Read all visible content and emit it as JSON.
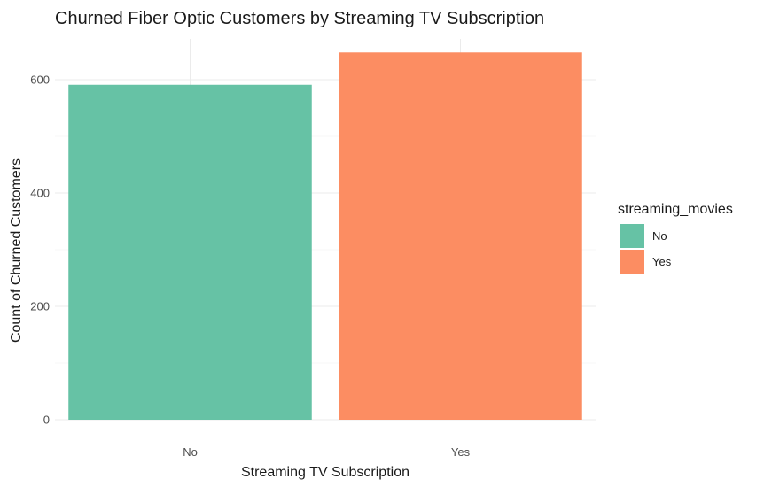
{
  "chart_data": {
    "type": "bar",
    "title": "Churned Fiber Optic Customers by Streaming TV Subscription",
    "xlabel": "Streaming TV Subscription",
    "ylabel": "Count of Churned Customers",
    "categories": [
      "No",
      "Yes"
    ],
    "values": [
      591,
      648
    ],
    "colors": [
      "#66c2a5",
      "#fc8d62"
    ],
    "ylim": [
      0,
      650
    ],
    "yticks": [
      0,
      200,
      400,
      600
    ],
    "grid": true,
    "legend": {
      "title": "streaming_movies",
      "position": "right",
      "entries": [
        {
          "label": "No",
          "color": "#66c2a5"
        },
        {
          "label": "Yes",
          "color": "#fc8d62"
        }
      ]
    }
  }
}
